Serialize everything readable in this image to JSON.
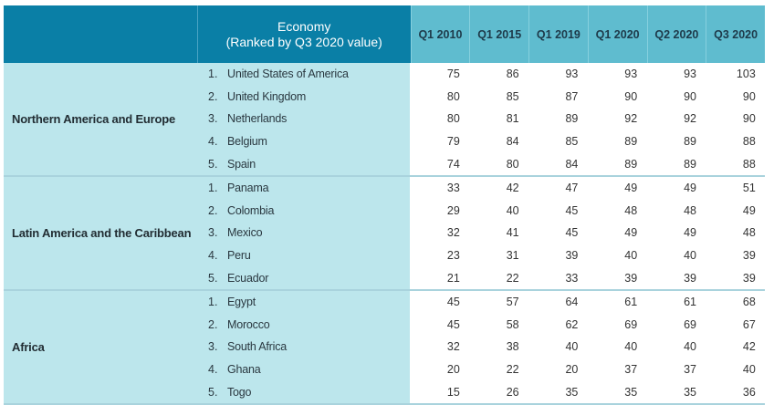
{
  "header": {
    "economy_line1": "Economy",
    "economy_line2": "(Ranked by Q3 2020 value)",
    "periods": [
      "Q1 2010",
      "Q1 2015",
      "Q1 2019",
      "Q1 2020",
      "Q2 2020",
      "Q3 2020"
    ]
  },
  "colors": {
    "header_dark": "#0a7fa6",
    "header_light": "#5fbccf",
    "region_bg": "#bce6ec"
  },
  "groups": [
    {
      "region": "Northern America and Europe",
      "rows": [
        {
          "rank": "1.",
          "economy": "United States of America",
          "values": [
            "75",
            "86",
            "93",
            "93",
            "93",
            "103"
          ]
        },
        {
          "rank": "2.",
          "economy": "United Kingdom",
          "values": [
            "80",
            "85",
            "87",
            "90",
            "90",
            "90"
          ]
        },
        {
          "rank": "3.",
          "economy": "Netherlands",
          "values": [
            "80",
            "81",
            "89",
            "92",
            "92",
            "90"
          ]
        },
        {
          "rank": "4.",
          "economy": "Belgium",
          "values": [
            "79",
            "84",
            "85",
            "89",
            "89",
            "88"
          ]
        },
        {
          "rank": "5.",
          "economy": "Spain",
          "values": [
            "74",
            "80",
            "84",
            "89",
            "89",
            "88"
          ]
        }
      ]
    },
    {
      "region": "Latin America and the Caribbean",
      "rows": [
        {
          "rank": "1.",
          "economy": "Panama",
          "values": [
            "33",
            "42",
            "47",
            "49",
            "49",
            "51"
          ]
        },
        {
          "rank": "2.",
          "economy": "Colombia",
          "values": [
            "29",
            "40",
            "45",
            "48",
            "48",
            "49"
          ]
        },
        {
          "rank": "3.",
          "economy": "Mexico",
          "values": [
            "32",
            "41",
            "45",
            "49",
            "49",
            "48"
          ]
        },
        {
          "rank": "4.",
          "economy": "Peru",
          "values": [
            "23",
            "31",
            "39",
            "40",
            "40",
            "39"
          ]
        },
        {
          "rank": "5.",
          "economy": "Ecuador",
          "values": [
            "21",
            "22",
            "33",
            "39",
            "39",
            "39"
          ]
        }
      ]
    },
    {
      "region": "Africa",
      "rows": [
        {
          "rank": "1.",
          "economy": "Egypt",
          "values": [
            "45",
            "57",
            "64",
            "61",
            "61",
            "68"
          ]
        },
        {
          "rank": "2.",
          "economy": "Morocco",
          "values": [
            "45",
            "58",
            "62",
            "69",
            "69",
            "67"
          ]
        },
        {
          "rank": "3.",
          "economy": "South Africa",
          "values": [
            "32",
            "38",
            "40",
            "40",
            "40",
            "42"
          ]
        },
        {
          "rank": "4.",
          "economy": "Ghana",
          "values": [
            "20",
            "22",
            "20",
            "37",
            "37",
            "40"
          ]
        },
        {
          "rank": "5.",
          "economy": "Togo",
          "values": [
            "15",
            "26",
            "35",
            "35",
            "35",
            "36"
          ]
        }
      ]
    }
  ]
}
